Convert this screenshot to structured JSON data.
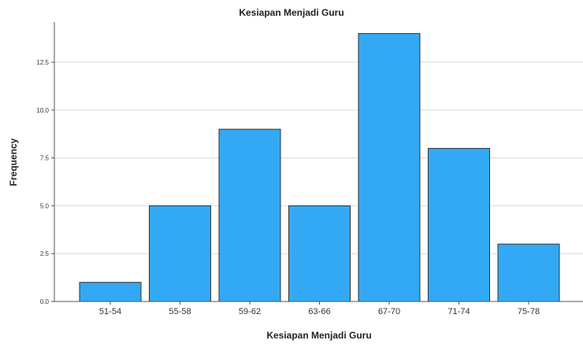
{
  "chart_data": {
    "type": "bar",
    "title": "Kesiapan Menjadi Guru",
    "xlabel": "Kesiapan Menjadi Guru",
    "ylabel": "Frequency",
    "categories": [
      "51-54",
      "55-58",
      "59-62",
      "63-66",
      "67-70",
      "71-74",
      "75-78"
    ],
    "values": [
      1,
      5,
      9,
      5,
      14,
      8,
      3
    ],
    "yticks": [
      "0.0",
      "2.5",
      "5.0",
      "7.5",
      "10.0",
      "12.5"
    ],
    "ylim": [
      0,
      14.6
    ],
    "grid": true,
    "bar_color": "#33a9f5",
    "bar_edge_color": "#333333",
    "grid_color": "#d9d9d9"
  }
}
